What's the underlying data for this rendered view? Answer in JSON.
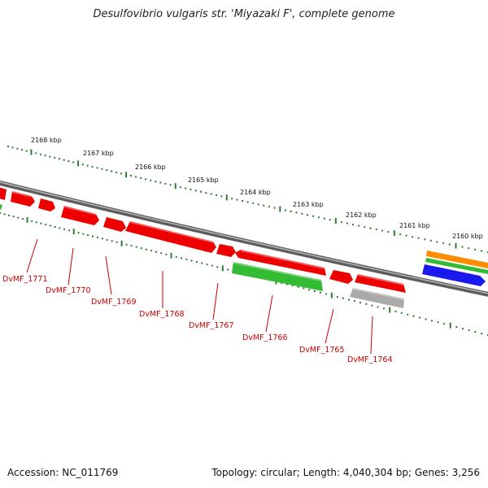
{
  "title": "Desulfovibrio vulgaris str. 'Miyazaki F', complete genome",
  "footer": {
    "accession": "Accession: NC_011769",
    "topology": "Topology: circular; Length: 4,040,304 bp; Genes: 3,256"
  },
  "scale_labels": [
    "2168 kbp",
    "2167 kbp",
    "2166 kbp",
    "2165 kbp",
    "2164 kbp",
    "2163 kbp",
    "2162 kbp",
    "2161 kbp",
    "2160 kbp"
  ],
  "gene_labels": [
    "DvMF_1771",
    "DvMF_1770",
    "DvMF_1769",
    "DvMF_1768",
    "DvMF_1767",
    "DvMF_1766",
    "DvMF_1765",
    "DvMF_1764"
  ],
  "colors": {
    "backbone": "#7a7a7a",
    "tick": "#2e7d32",
    "gene_red": "#ee0000",
    "gene_green": "#33bb33",
    "gene_grey": "#aaaaaa",
    "gene_orange": "#ff8c00",
    "gene_blue": "#1a1aee",
    "label": "#cc0000"
  }
}
